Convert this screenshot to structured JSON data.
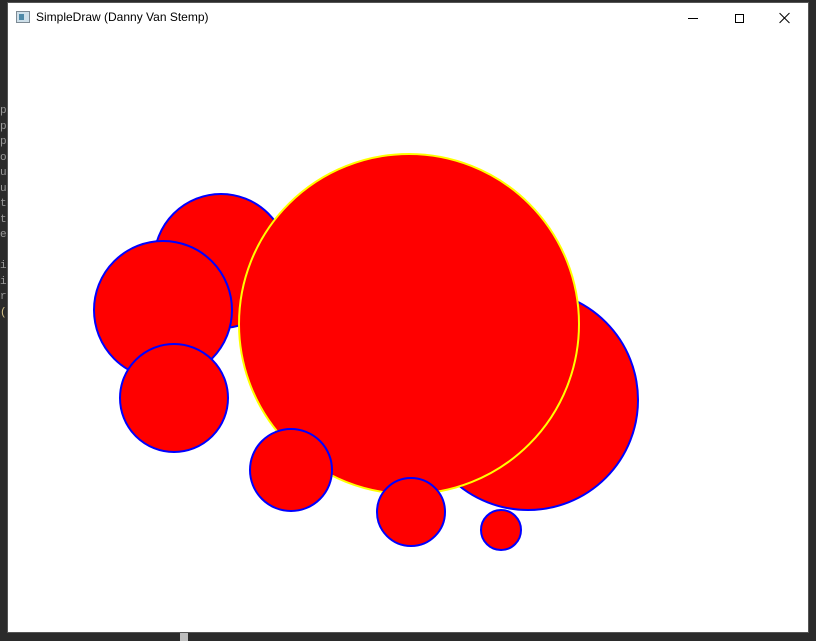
{
  "window": {
    "title": "SimpleDraw (Danny Van Stemp)",
    "controls": {
      "minimize": "minimize",
      "maximize": "maximize",
      "close": "close"
    }
  },
  "colors": {
    "circle_fill": "#ff0000",
    "circle_stroke": "#0000ff",
    "selected_stroke": "#ffff00",
    "canvas_background": "#ffffff"
  },
  "background_editor": {
    "partial_lines": [
      "p",
      "p",
      "p",
      "o",
      "u.",
      "u.",
      "t",
      "t",
      "e",
      "",
      "i",
      "i",
      "r",
      "("
    ]
  }
}
